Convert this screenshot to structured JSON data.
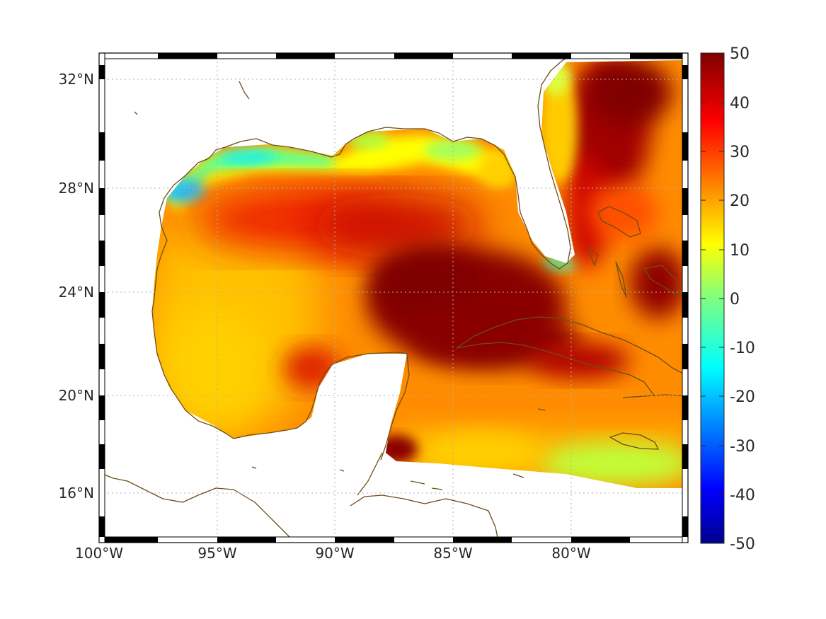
{
  "map": {
    "lat_ticks": [
      "32°N",
      "28°N",
      "24°N",
      "20°N",
      "16°N"
    ],
    "lon_ticks": [
      "100°W",
      "95°W",
      "90°W",
      "85°W",
      "80°W"
    ],
    "extent": {
      "lon": [
        -100,
        -75
      ],
      "lat": [
        14.3,
        33
      ]
    },
    "field_type": "gridded color field (unlabeled quantity)",
    "coastline_color": "#6b4e16"
  },
  "colorbar": {
    "tick_labels": [
      "50",
      "40",
      "30",
      "20",
      "10",
      "0",
      "-10",
      "-20",
      "-30",
      "-40",
      "-50"
    ],
    "range": [
      -50,
      50
    ],
    "colormap": "jet"
  }
}
